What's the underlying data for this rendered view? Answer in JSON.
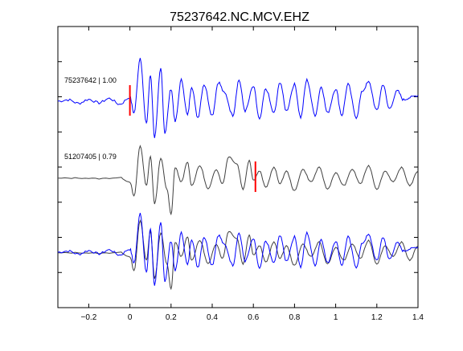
{
  "chart_data": {
    "type": "line",
    "title": "75237642.NC.MCV.EHZ",
    "xlabel": "",
    "ylabel": "",
    "xlim": [
      -0.35,
      1.4
    ],
    "xticks": [
      -0.2,
      0,
      0.2,
      0.4,
      0.6,
      0.8,
      1,
      1.2,
      1.4
    ],
    "xtick_labels": [
      "−0.2",
      "0",
      "0.2",
      "0.4",
      "0.6",
      "0.8",
      "1",
      "1.2",
      "1.4"
    ],
    "ytick_count": 7,
    "grid": false,
    "legend": "none",
    "traces": [
      {
        "label": "75237642 | 1.00",
        "color": "#0000ff",
        "pick_time": 0.0,
        "t": [
          -0.35,
          -0.3,
          -0.25,
          -0.2,
          -0.15,
          -0.1,
          -0.05,
          0.0,
          0.02,
          0.05,
          0.08,
          0.1,
          0.12,
          0.15,
          0.17,
          0.2,
          0.22,
          0.25,
          0.28,
          0.3,
          0.33,
          0.36,
          0.4,
          0.43,
          0.46,
          0.5,
          0.53,
          0.56,
          0.6,
          0.63,
          0.66,
          0.7,
          0.73,
          0.76,
          0.8,
          0.83,
          0.86,
          0.9,
          0.93,
          0.96,
          1.0,
          1.03,
          1.06,
          1.1,
          1.13,
          1.16,
          1.2,
          1.23,
          1.26,
          1.3,
          1.33,
          1.36,
          1.4
        ],
        "amp": [
          0.02,
          0.05,
          -0.03,
          0.06,
          -0.02,
          0.08,
          -0.05,
          0.1,
          -0.25,
          1.0,
          -0.5,
          0.6,
          -0.8,
          0.75,
          -0.7,
          0.3,
          -0.45,
          0.5,
          -0.3,
          0.35,
          -0.35,
          0.4,
          -0.3,
          0.45,
          0.2,
          -0.3,
          0.5,
          -0.2,
          0.35,
          -0.4,
          0.3,
          -0.25,
          0.45,
          -0.2,
          0.4,
          -0.35,
          0.5,
          -0.3,
          0.35,
          -0.25,
          0.3,
          -0.3,
          0.4,
          -0.35,
          0.25,
          0.45,
          -0.2,
          0.4,
          -0.15,
          0.25,
          0.05,
          0.1,
          0.15
        ]
      },
      {
        "label": "51207405 | 0.79",
        "color": "#404040",
        "pick_time": 0.61,
        "t": [
          -0.35,
          -0.25,
          -0.15,
          -0.05,
          0.0,
          0.02,
          0.05,
          0.08,
          0.1,
          0.12,
          0.15,
          0.18,
          0.2,
          0.22,
          0.25,
          0.28,
          0.3,
          0.34,
          0.38,
          0.42,
          0.45,
          0.48,
          0.52,
          0.55,
          0.58,
          0.6,
          0.63,
          0.66,
          0.7,
          0.73,
          0.76,
          0.8,
          0.84,
          0.88,
          0.92,
          0.96,
          1.0,
          1.04,
          1.08,
          1.12,
          1.16,
          1.2,
          1.24,
          1.28,
          1.32,
          1.36,
          1.4
        ],
        "amp": [
          0.0,
          0.01,
          -0.01,
          0.02,
          -0.1,
          -0.5,
          0.9,
          -0.2,
          0.6,
          -0.7,
          0.55,
          -0.3,
          -1.0,
          0.3,
          -0.1,
          0.45,
          -0.2,
          0.35,
          -0.3,
          0.25,
          -0.15,
          0.6,
          0.4,
          -0.3,
          0.5,
          -0.05,
          0.2,
          -0.25,
          0.3,
          -0.15,
          0.2,
          -0.35,
          0.25,
          -0.1,
          0.3,
          -0.3,
          0.15,
          -0.2,
          0.25,
          -0.15,
          0.35,
          -0.3,
          0.2,
          -0.1,
          0.3,
          -0.2,
          0.2
        ]
      }
    ]
  }
}
